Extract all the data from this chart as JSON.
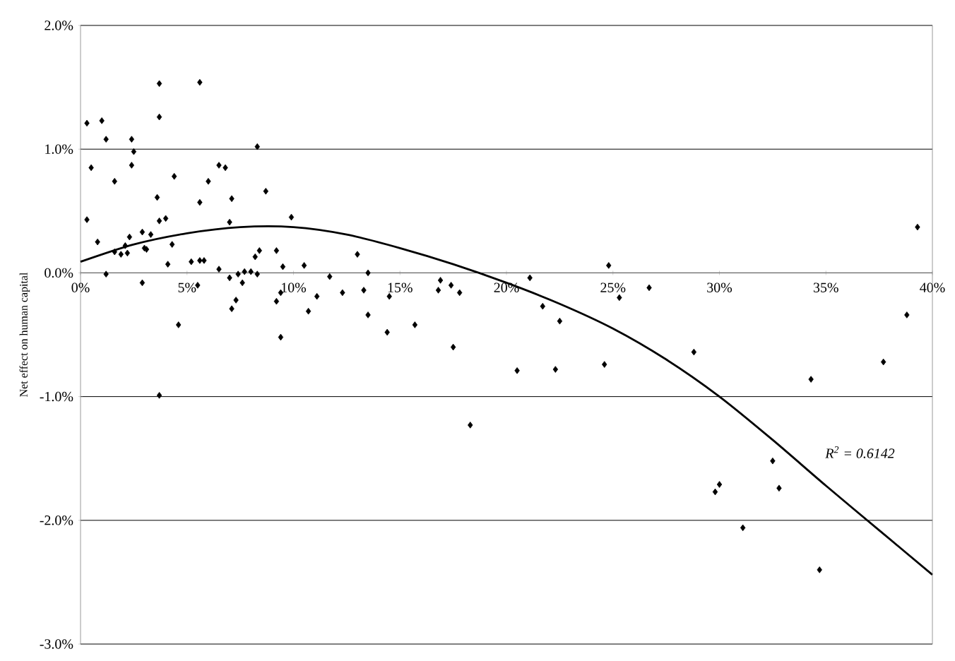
{
  "chart_data": {
    "type": "scatter",
    "ylabel": "Net effect on human capital",
    "xlim": [
      0,
      40
    ],
    "ylim": [
      -3,
      2
    ],
    "xticks": [
      {
        "value": 0,
        "label": "0%"
      },
      {
        "value": 5,
        "label": "5%"
      },
      {
        "value": 10,
        "label": "10%"
      },
      {
        "value": 15,
        "label": "15%"
      },
      {
        "value": 20,
        "label": "20%"
      },
      {
        "value": 25,
        "label": "25%"
      },
      {
        "value": 30,
        "label": "30%"
      },
      {
        "value": 35,
        "label": "35%"
      },
      {
        "value": 40,
        "label": "40%"
      }
    ],
    "yticks": [
      {
        "value": -3,
        "label": "-3.0%"
      },
      {
        "value": -2,
        "label": "-2.0%"
      },
      {
        "value": -1,
        "label": "-1.0%"
      },
      {
        "value": 0,
        "label": "0.0%"
      },
      {
        "value": 1,
        "label": "1.0%"
      },
      {
        "value": 2,
        "label": "2.0%"
      }
    ],
    "grid": "y",
    "annotations": [
      "R$^{2}$ = 0.6142"
    ],
    "series": [
      {
        "marker": "diamond",
        "color": "#000000",
        "x": [
          3.7,
          5.6,
          0.3,
          1.0,
          3.7,
          1.2,
          2.4,
          2.5,
          8.3,
          0.5,
          2.4,
          6.5,
          6.8,
          1.6,
          4.4,
          6.0,
          3.6,
          5.6,
          7.1,
          8.7,
          0.3,
          3.7,
          4.0,
          7.0,
          9.9,
          0.8,
          2.3,
          2.9,
          3.3,
          2.1,
          1.6,
          1.9,
          2.2,
          3.0,
          3.1,
          4.3,
          4.1,
          5.2,
          5.6,
          5.8,
          6.5,
          8.2,
          8.4,
          9.2,
          9.5,
          1.2,
          2.9,
          5.5,
          7.0,
          7.4,
          7.7,
          8.0,
          8.3,
          7.6,
          7.3,
          7.1,
          9.4,
          9.2,
          4.6,
          9.4,
          3.7,
          10.5,
          11.7,
          11.1,
          10.7,
          12.3,
          13.0,
          13.3,
          13.5,
          13.5,
          14.5,
          14.4,
          15.7,
          16.9,
          16.8,
          17.4,
          17.8,
          17.5,
          18.3,
          20.5,
          21.1,
          39.3,
          24.8,
          25.3,
          26.7,
          21.7,
          22.5,
          38.8,
          28.8,
          22.3,
          24.6,
          34.3,
          37.7,
          32.5,
          30.0,
          29.8,
          32.8,
          31.1,
          34.7
        ],
        "values": [
          1.53,
          1.54,
          1.21,
          1.23,
          1.26,
          1.08,
          1.08,
          0.98,
          1.02,
          0.85,
          0.87,
          0.87,
          0.85,
          0.74,
          0.78,
          0.74,
          0.61,
          0.57,
          0.6,
          0.66,
          0.43,
          0.42,
          0.44,
          0.41,
          0.45,
          0.25,
          0.29,
          0.33,
          0.31,
          0.22,
          0.17,
          0.15,
          0.16,
          0.2,
          0.19,
          0.23,
          0.07,
          0.09,
          0.1,
          0.1,
          0.03,
          0.13,
          0.18,
          0.18,
          0.05,
          -0.01,
          -0.08,
          -0.1,
          -0.04,
          -0.01,
          0.01,
          0.01,
          -0.01,
          -0.08,
          -0.22,
          -0.29,
          -0.16,
          -0.23,
          -0.42,
          -0.52,
          -0.99,
          0.06,
          -0.03,
          -0.19,
          -0.31,
          -0.16,
          0.15,
          -0.14,
          0.0,
          -0.34,
          -0.19,
          -0.48,
          -0.42,
          -0.06,
          -0.14,
          -0.1,
          -0.16,
          -0.6,
          -1.23,
          -0.79,
          -0.04,
          0.37,
          0.06,
          -0.2,
          -0.12,
          -0.27,
          -0.39,
          -0.34,
          -0.64,
          -0.78,
          -0.74,
          -0.86,
          -0.72,
          -1.52,
          -1.71,
          -1.77,
          -1.74,
          -2.06,
          -2.4
        ]
      },
      {
        "type": "line",
        "color": "#000000",
        "x": [
          0,
          2.5,
          5,
          7.5,
          10,
          12.5,
          15,
          17.5,
          20,
          22.5,
          25,
          27.5,
          30,
          32.5,
          35,
          37.5,
          40
        ],
        "values": [
          0.09,
          0.23,
          0.32,
          0.37,
          0.37,
          0.31,
          0.2,
          0.07,
          -0.08,
          -0.25,
          -0.45,
          -0.7,
          -1.0,
          -1.35,
          -1.72,
          -2.08,
          -2.44
        ]
      }
    ]
  }
}
